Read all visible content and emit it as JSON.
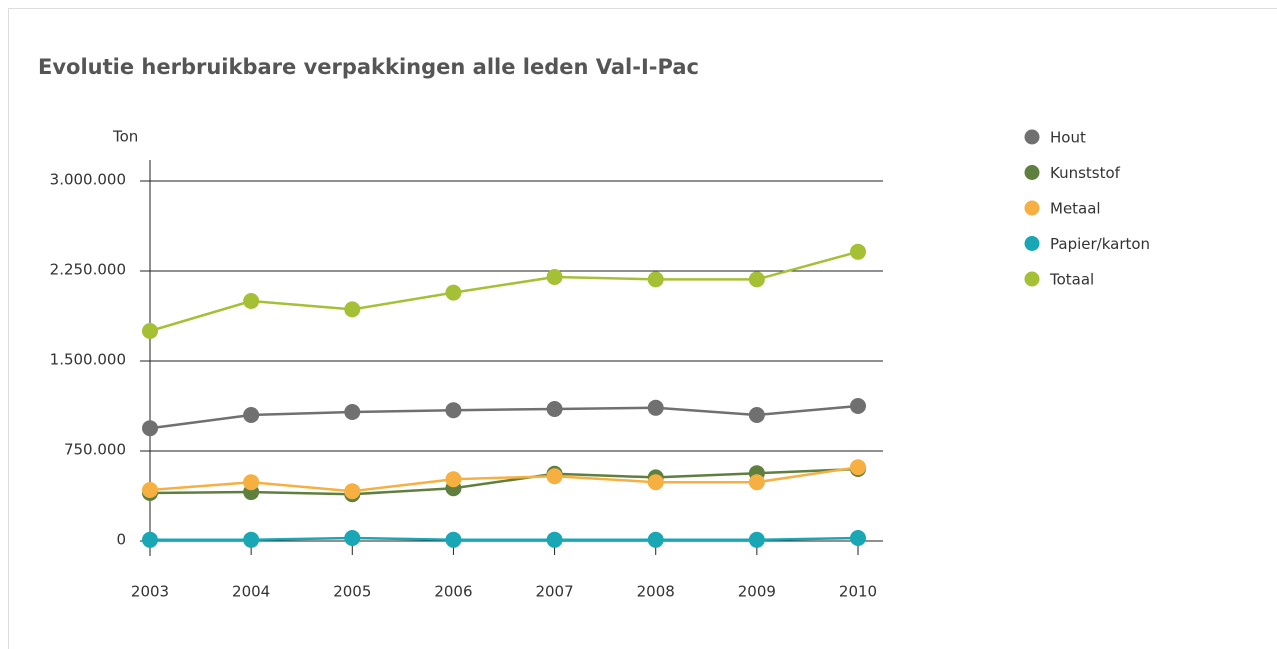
{
  "chart_data": {
    "type": "line",
    "title": "Evolutie herbruikbare verpakkingen alle leden Val-I-Pac",
    "y_label": "Ton",
    "categories": [
      "2003",
      "2004",
      "2005",
      "2006",
      "2007",
      "2008",
      "2009",
      "2010"
    ],
    "series": [
      {
        "name": "Hout",
        "color": "#707070",
        "values": [
          940000,
          1050000,
          1075000,
          1090000,
          1100000,
          1110000,
          1050000,
          1125000
        ]
      },
      {
        "name": "Kunststof",
        "color": "#5f7f3e",
        "values": [
          400000,
          408000,
          390000,
          440000,
          560000,
          530000,
          565000,
          600000
        ]
      },
      {
        "name": "Metaal",
        "color": "#f5b041",
        "values": [
          425000,
          490000,
          415000,
          515000,
          540000,
          490000,
          490000,
          615000
        ]
      },
      {
        "name": "Papier/karton",
        "color": "#1aa7b5",
        "values": [
          10000,
          10000,
          25000,
          10000,
          10000,
          10000,
          10000,
          25000
        ]
      },
      {
        "name": "Totaal",
        "color": "#a5c035",
        "values": [
          1750000,
          2000000,
          1930000,
          2070000,
          2200000,
          2180000,
          2180000,
          2410000
        ]
      }
    ],
    "ylim": [
      0,
      3000000
    ],
    "yticks": [
      0,
      {
        "value": 750000,
        "label": "750.000"
      },
      {
        "value": 1500000,
        "label": "1.500.000"
      },
      {
        "value": 2250000,
        "label": "2.250.000"
      },
      {
        "value": 3000000,
        "label": "3.000.000"
      }
    ],
    "grid": true,
    "legend": "right"
  }
}
